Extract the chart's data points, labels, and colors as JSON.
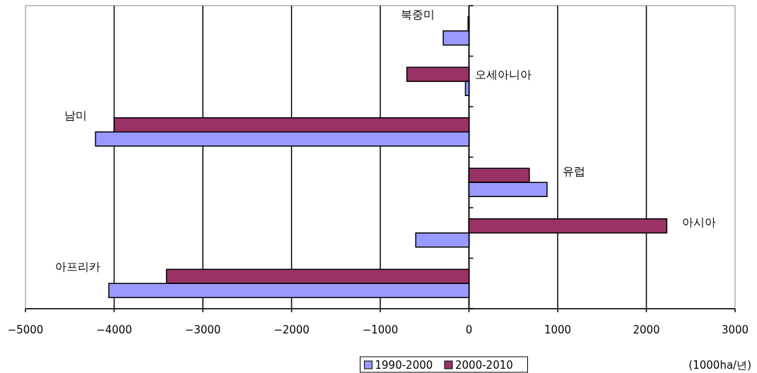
{
  "chart_data": {
    "type": "bar",
    "orientation": "horizontal",
    "categories": [
      "북중미",
      "오세아니아",
      "남미",
      "유럽",
      "아시아",
      "아프리카"
    ],
    "series": [
      {
        "name": "2000-2010",
        "color": "#993366",
        "values": [
          -10,
          -700,
          -4000,
          680,
          2230,
          -3410
        ]
      },
      {
        "name": "1990-2000",
        "color": "#9999ff",
        "values": [
          -290,
          -40,
          -4210,
          880,
          -600,
          -4060
        ]
      }
    ],
    "xlim": [
      -5000,
      3000
    ],
    "xticks": [
      -5000,
      -4000,
      -3000,
      -2000,
      -1000,
      0,
      1000,
      2000,
      3000
    ],
    "grid": "x",
    "legend": "bottom",
    "annotations": [
      "(1000ha/년)"
    ]
  }
}
